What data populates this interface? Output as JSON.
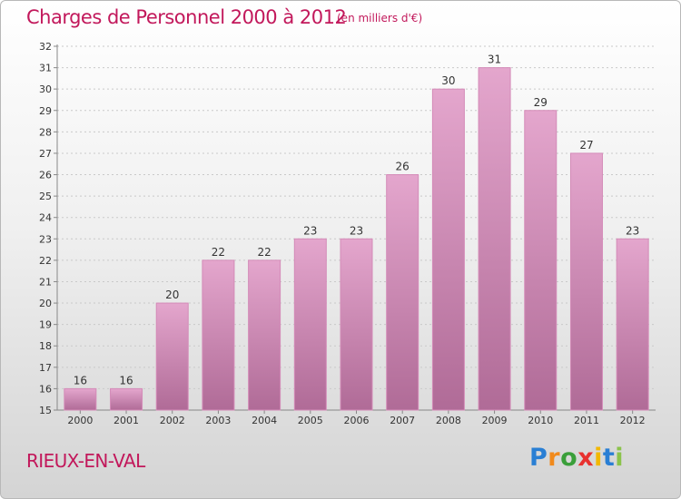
{
  "header": {
    "title": "Charges de Personnel 2000 à 2012",
    "unit": "(en milliers d'€)"
  },
  "footer": {
    "town": "RIEUX-EN-VAL",
    "logo": "Proxiti"
  },
  "colors": {
    "title": "#c2185b",
    "bar_top": "#e4a6cd",
    "bar_bottom": "#b06b97",
    "bar_stroke": "#d48bb8"
  },
  "chart_data": {
    "type": "bar",
    "title": "Charges de Personnel 2000 à 2012",
    "categories": [
      "2000",
      "2001",
      "2002",
      "2003",
      "2004",
      "2005",
      "2006",
      "2007",
      "2008",
      "2009",
      "2010",
      "2011",
      "2012"
    ],
    "values": [
      16,
      16,
      20,
      22,
      22,
      23,
      23,
      26,
      30,
      31,
      29,
      27,
      23
    ],
    "ylim": [
      15,
      32
    ],
    "yticks": [
      15,
      16,
      17,
      18,
      19,
      20,
      21,
      22,
      23,
      24,
      25,
      26,
      27,
      28,
      29,
      30,
      31,
      32
    ],
    "grid": true,
    "xlabel": "",
    "ylabel": ""
  }
}
